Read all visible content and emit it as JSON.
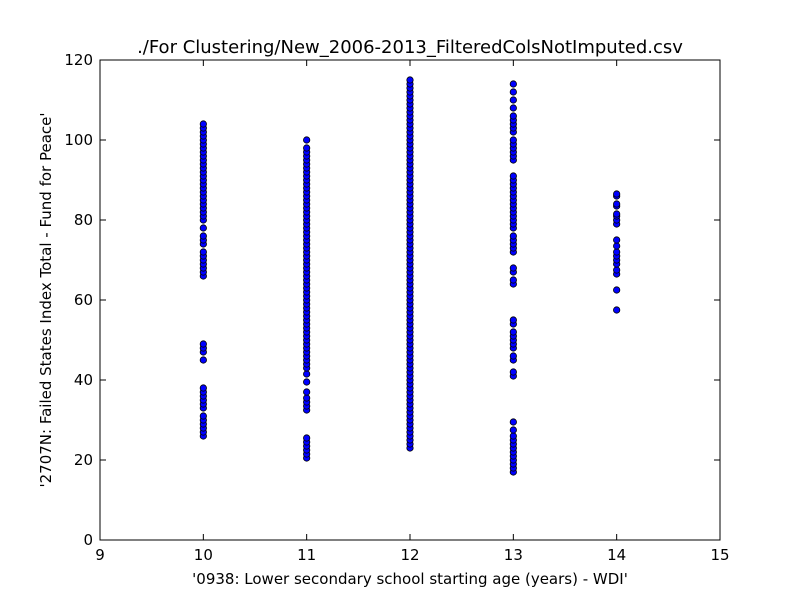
{
  "chart_data": {
    "type": "scatter",
    "title": "./For Clustering/New_2006-2013_FilteredColsNotImputed.csv",
    "xlabel": "'0938: Lower secondary school starting age  (years) - WDI'",
    "ylabel": "'2707N: Failed States Index Total - Fund for Peace'",
    "xlim": [
      9,
      15
    ],
    "ylim": [
      0,
      120
    ],
    "xticks": [
      "9",
      "10",
      "11",
      "12",
      "13",
      "14",
      "15"
    ],
    "yticks": [
      "0",
      "20",
      "40",
      "60",
      "80",
      "100",
      "120"
    ],
    "grid": false,
    "legend": "none",
    "marker_color": "#0000ff",
    "marker_edge_color": "#000000",
    "series": [
      {
        "x": 10,
        "y": [
          26,
          27,
          28,
          29,
          30,
          31,
          33,
          34,
          35,
          36,
          37,
          38,
          45,
          47,
          48,
          49,
          66,
          67,
          68,
          69,
          70,
          71,
          72,
          74,
          75,
          76,
          78,
          80,
          81,
          82,
          83,
          84,
          85,
          86,
          87,
          88,
          89,
          90,
          91,
          92,
          93,
          94,
          95,
          96,
          97,
          98,
          99,
          100,
          101,
          102,
          103,
          104
        ]
      },
      {
        "x": 11,
        "y": [
          20.5,
          21.5,
          22.5,
          23.5,
          24.5,
          25.5,
          32.5,
          33.5,
          34.5,
          35.5,
          37,
          39.5,
          41.5,
          43,
          44,
          45,
          46,
          47,
          48,
          49,
          50,
          51,
          52,
          53,
          54,
          55,
          56,
          57,
          58,
          59,
          60,
          61,
          62,
          63,
          64,
          65,
          66,
          67,
          68,
          69,
          70,
          71,
          72,
          73,
          74,
          75,
          76,
          77,
          78,
          79,
          80,
          81,
          82,
          83,
          84,
          85,
          86,
          87,
          88,
          89,
          90,
          91,
          92,
          93,
          94,
          95,
          96,
          97,
          98,
          100
        ]
      },
      {
        "x": 12,
        "y": [
          23,
          24,
          25,
          26,
          27,
          28,
          29,
          30,
          31,
          32,
          33,
          34,
          35,
          36,
          37,
          38,
          39,
          40,
          41,
          42,
          43,
          44,
          45,
          46,
          47,
          48,
          49,
          50,
          51,
          52,
          53,
          54,
          55,
          56,
          57,
          58,
          59,
          60,
          61,
          62,
          63,
          64,
          65,
          66,
          67,
          68,
          69,
          70,
          71,
          72,
          73,
          74,
          75,
          76,
          77,
          78,
          79,
          80,
          81,
          82,
          83,
          84,
          85,
          86,
          87,
          88,
          89,
          90,
          91,
          92,
          93,
          94,
          95,
          96,
          97,
          98,
          99,
          100,
          101,
          102,
          103,
          104,
          105,
          106,
          107,
          108,
          109,
          110,
          111,
          112,
          113,
          114,
          115
        ]
      },
      {
        "x": 13,
        "y": [
          17,
          18,
          19,
          20,
          21,
          22,
          23,
          24,
          25,
          26,
          27.5,
          29.5,
          41,
          42,
          45,
          46,
          48,
          49,
          50,
          51,
          52,
          54,
          55,
          64,
          65,
          67,
          68,
          72,
          73,
          74,
          75,
          76,
          78,
          79,
          80,
          81,
          82,
          83,
          84,
          85,
          86,
          87,
          88,
          89,
          90,
          91,
          95,
          96,
          97,
          98,
          99,
          100,
          102,
          103,
          104,
          105,
          106,
          108,
          110,
          112,
          114
        ]
      },
      {
        "x": 14,
        "y": [
          57.5,
          62.5,
          66.5,
          67.5,
          69,
          70,
          71,
          72,
          73.5,
          75,
          79,
          80,
          81,
          81.5,
          83.5,
          84,
          86,
          86.5
        ]
      }
    ]
  }
}
